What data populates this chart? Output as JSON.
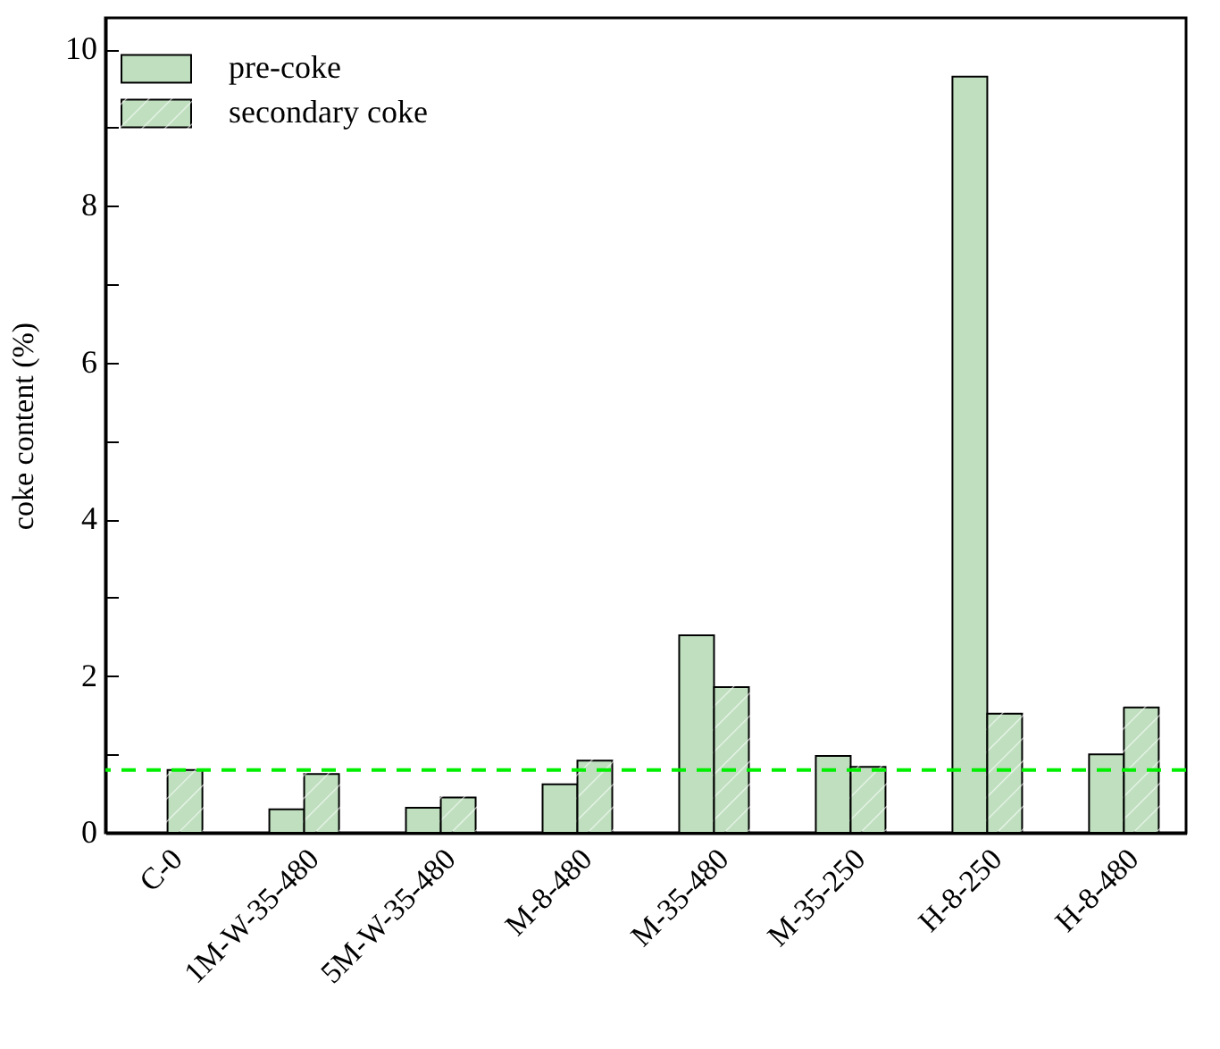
{
  "chart_data": {
    "type": "bar",
    "ylabel": "coke content (%)",
    "categories": [
      "C-0",
      "1M-W-35-480",
      "5M-W-35-480",
      "M-8-480",
      "M-35-480",
      "M-35-250",
      "H-8-250",
      "H-8-480"
    ],
    "series": [
      {
        "name": "pre-coke",
        "color": "#bfdfbf",
        "values": [
          null,
          0.3,
          0.32,
          0.62,
          2.52,
          0.98,
          9.65,
          1.0
        ]
      },
      {
        "name": "secondary coke",
        "color": "#bfdfbf",
        "values": [
          0.8,
          0.75,
          0.45,
          0.92,
          1.86,
          0.84,
          1.52,
          1.6
        ]
      }
    ],
    "ylim": [
      0,
      10.4
    ],
    "yticks": [
      0,
      {
        "value": 1,
        "label": null
      },
      2,
      {
        "value": 3,
        "label": null
      },
      4,
      {
        "value": 5,
        "label": null
      },
      6,
      {
        "value": 7,
        "label": null
      },
      8,
      {
        "value": 9,
        "label": null
      },
      10
    ],
    "ref_lines": [
      {
        "axis": "y",
        "value": 0.8,
        "color": "#00ee00",
        "line_style": "dashed"
      }
    ],
    "legend": "top left",
    "grid": false
  }
}
